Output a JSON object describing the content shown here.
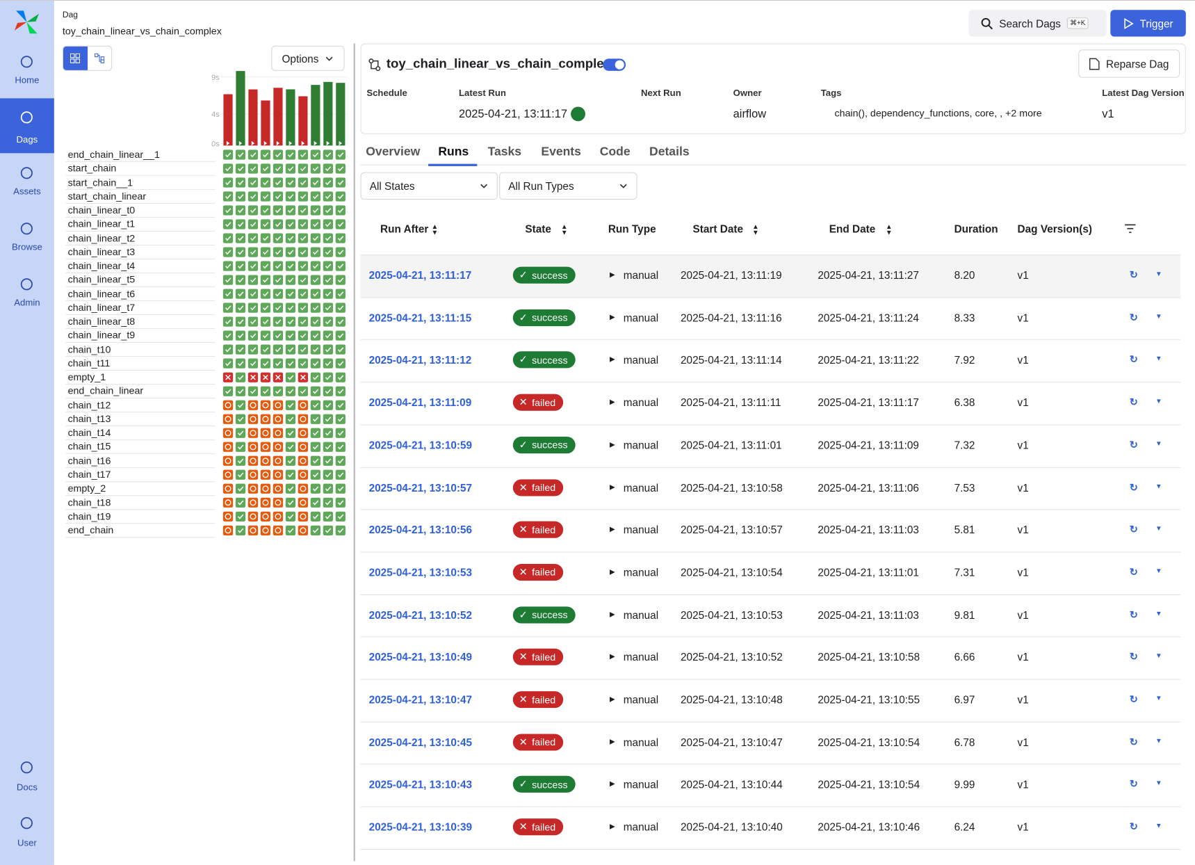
{
  "nav": {
    "items": [
      "Home",
      "Dags",
      "Assets",
      "Browse",
      "Admin"
    ],
    "bottom": [
      "Docs",
      "User"
    ]
  },
  "header": {
    "label": "Dag",
    "dag_id": "toy_chain_linear_vs_chain_complex",
    "search": "Search Dags",
    "shortcut": "⌘+K",
    "trigger": "Trigger",
    "options": "Options"
  },
  "dag": {
    "title": "toy_chain_linear_vs_chain_complex",
    "reparse": "Reparse Dag",
    "meta": [
      {
        "label": "Schedule",
        "value": null
      },
      {
        "label": "Latest Run",
        "value": "2025-04-21, 13:11:17"
      },
      {
        "label": "Next Run",
        "value": null
      },
      {
        "label": "Owner",
        "value": "airflow"
      },
      {
        "label": "Tags",
        "value": "chain(), dependency_functions, core, , +2 more"
      },
      {
        "label": "Latest Dag Version",
        "value": "v1"
      }
    ]
  },
  "tabs": {
    "items": [
      "Overview",
      "Runs",
      "Tasks",
      "Events",
      "Code",
      "Details"
    ],
    "active": "Runs"
  },
  "filters": [
    "All States",
    "All Run Types"
  ],
  "chart_data": {
    "type": "bar",
    "durations": [
      6.66,
      9.81,
      7.31,
      5.81,
      7.53,
      7.32,
      6.38,
      7.92,
      8.33,
      8.2
    ],
    "states": [
      "failed",
      "success",
      "failed",
      "failed",
      "failed",
      "success",
      "failed",
      "success",
      "success",
      "success"
    ],
    "ylim": [
      0,
      9
    ],
    "yticks": [
      {
        "value": 0,
        "label": "0s"
      },
      {
        "value": 4,
        "label": "4s"
      },
      {
        "value": 9,
        "label": "9s"
      }
    ]
  },
  "grid": {
    "tasks": [
      {
        "name": "end_chain_linear__1",
        "states": [
          "success",
          "success",
          "success",
          "success",
          "success",
          "success",
          "success",
          "success",
          "success",
          "success"
        ]
      },
      {
        "name": "start_chain",
        "states": [
          "success",
          "success",
          "success",
          "success",
          "success",
          "success",
          "success",
          "success",
          "success",
          "success"
        ]
      },
      {
        "name": "start_chain__1",
        "states": [
          "success",
          "success",
          "success",
          "success",
          "success",
          "success",
          "success",
          "success",
          "success",
          "success"
        ]
      },
      {
        "name": "start_chain_linear",
        "states": [
          "success",
          "success",
          "success",
          "success",
          "success",
          "success",
          "success",
          "success",
          "success",
          "success"
        ]
      },
      {
        "name": "chain_linear_t0",
        "states": [
          "success",
          "success",
          "success",
          "success",
          "success",
          "success",
          "success",
          "success",
          "success",
          "success"
        ]
      },
      {
        "name": "chain_linear_t1",
        "states": [
          "success",
          "success",
          "success",
          "success",
          "success",
          "success",
          "success",
          "success",
          "success",
          "success"
        ]
      },
      {
        "name": "chain_linear_t2",
        "states": [
          "success",
          "success",
          "success",
          "success",
          "success",
          "success",
          "success",
          "success",
          "success",
          "success"
        ]
      },
      {
        "name": "chain_linear_t3",
        "states": [
          "success",
          "success",
          "success",
          "success",
          "success",
          "success",
          "success",
          "success",
          "success",
          "success"
        ]
      },
      {
        "name": "chain_linear_t4",
        "states": [
          "success",
          "success",
          "success",
          "success",
          "success",
          "success",
          "success",
          "success",
          "success",
          "success"
        ]
      },
      {
        "name": "chain_linear_t5",
        "states": [
          "success",
          "success",
          "success",
          "success",
          "success",
          "success",
          "success",
          "success",
          "success",
          "success"
        ]
      },
      {
        "name": "chain_linear_t6",
        "states": [
          "success",
          "success",
          "success",
          "success",
          "success",
          "success",
          "success",
          "success",
          "success",
          "success"
        ]
      },
      {
        "name": "chain_linear_t7",
        "states": [
          "success",
          "success",
          "success",
          "success",
          "success",
          "success",
          "success",
          "success",
          "success",
          "success"
        ]
      },
      {
        "name": "chain_linear_t8",
        "states": [
          "success",
          "success",
          "success",
          "success",
          "success",
          "success",
          "success",
          "success",
          "success",
          "success"
        ]
      },
      {
        "name": "chain_linear_t9",
        "states": [
          "success",
          "success",
          "success",
          "success",
          "success",
          "success",
          "success",
          "success",
          "success",
          "success"
        ]
      },
      {
        "name": "chain_t10",
        "states": [
          "success",
          "success",
          "success",
          "success",
          "success",
          "success",
          "success",
          "success",
          "success",
          "success"
        ]
      },
      {
        "name": "chain_t11",
        "states": [
          "success",
          "success",
          "success",
          "success",
          "success",
          "success",
          "success",
          "success",
          "success",
          "success"
        ]
      },
      {
        "name": "empty_1",
        "states": [
          "failed",
          "success",
          "failed",
          "failed",
          "failed",
          "success",
          "failed",
          "success",
          "success",
          "success"
        ]
      },
      {
        "name": "end_chain_linear",
        "states": [
          "success",
          "success",
          "success",
          "success",
          "success",
          "success",
          "success",
          "success",
          "success",
          "success"
        ]
      },
      {
        "name": "chain_t12",
        "states": [
          "upstream_failed",
          "success",
          "upstream_failed",
          "upstream_failed",
          "upstream_failed",
          "success",
          "upstream_failed",
          "success",
          "success",
          "success"
        ]
      },
      {
        "name": "chain_t13",
        "states": [
          "upstream_failed",
          "success",
          "upstream_failed",
          "upstream_failed",
          "upstream_failed",
          "success",
          "upstream_failed",
          "success",
          "success",
          "success"
        ]
      },
      {
        "name": "chain_t14",
        "states": [
          "upstream_failed",
          "success",
          "upstream_failed",
          "upstream_failed",
          "upstream_failed",
          "success",
          "upstream_failed",
          "success",
          "success",
          "success"
        ]
      },
      {
        "name": "chain_t15",
        "states": [
          "upstream_failed",
          "success",
          "upstream_failed",
          "upstream_failed",
          "upstream_failed",
          "success",
          "upstream_failed",
          "success",
          "success",
          "success"
        ]
      },
      {
        "name": "chain_t16",
        "states": [
          "upstream_failed",
          "success",
          "upstream_failed",
          "upstream_failed",
          "upstream_failed",
          "success",
          "upstream_failed",
          "success",
          "success",
          "success"
        ]
      },
      {
        "name": "chain_t17",
        "states": [
          "upstream_failed",
          "success",
          "upstream_failed",
          "upstream_failed",
          "upstream_failed",
          "success",
          "upstream_failed",
          "success",
          "success",
          "success"
        ]
      },
      {
        "name": "empty_2",
        "states": [
          "upstream_failed",
          "success",
          "upstream_failed",
          "upstream_failed",
          "upstream_failed",
          "success",
          "upstream_failed",
          "success",
          "success",
          "success"
        ]
      },
      {
        "name": "chain_t18",
        "states": [
          "upstream_failed",
          "success",
          "upstream_failed",
          "upstream_failed",
          "upstream_failed",
          "success",
          "upstream_failed",
          "success",
          "success",
          "success"
        ]
      },
      {
        "name": "chain_t19",
        "states": [
          "upstream_failed",
          "success",
          "upstream_failed",
          "upstream_failed",
          "upstream_failed",
          "success",
          "upstream_failed",
          "success",
          "success",
          "success"
        ]
      },
      {
        "name": "end_chain",
        "states": [
          "upstream_failed",
          "success",
          "upstream_failed",
          "upstream_failed",
          "upstream_failed",
          "success",
          "upstream_failed",
          "success",
          "success",
          "success"
        ]
      }
    ]
  },
  "table": {
    "columns": [
      "Run After",
      "State",
      "Run Type",
      "Start Date",
      "End Date",
      "Duration",
      "Dag Version(s)"
    ],
    "rows": [
      [
        "2025-04-21, 13:11:17",
        "success",
        "manual",
        "2025-04-21, 13:11:19",
        "2025-04-21, 13:11:27",
        "8.20",
        "v1"
      ],
      [
        "2025-04-21, 13:11:15",
        "success",
        "manual",
        "2025-04-21, 13:11:16",
        "2025-04-21, 13:11:24",
        "8.33",
        "v1"
      ],
      [
        "2025-04-21, 13:11:12",
        "success",
        "manual",
        "2025-04-21, 13:11:14",
        "2025-04-21, 13:11:22",
        "7.92",
        "v1"
      ],
      [
        "2025-04-21, 13:11:09",
        "failed",
        "manual",
        "2025-04-21, 13:11:11",
        "2025-04-21, 13:11:17",
        "6.38",
        "v1"
      ],
      [
        "2025-04-21, 13:10:59",
        "success",
        "manual",
        "2025-04-21, 13:11:01",
        "2025-04-21, 13:11:09",
        "7.32",
        "v1"
      ],
      [
        "2025-04-21, 13:10:57",
        "failed",
        "manual",
        "2025-04-21, 13:10:58",
        "2025-04-21, 13:11:06",
        "7.53",
        "v1"
      ],
      [
        "2025-04-21, 13:10:56",
        "failed",
        "manual",
        "2025-04-21, 13:10:57",
        "2025-04-21, 13:11:03",
        "5.81",
        "v1"
      ],
      [
        "2025-04-21, 13:10:53",
        "failed",
        "manual",
        "2025-04-21, 13:10:54",
        "2025-04-21, 13:11:01",
        "7.31",
        "v1"
      ],
      [
        "2025-04-21, 13:10:52",
        "success",
        "manual",
        "2025-04-21, 13:10:53",
        "2025-04-21, 13:11:03",
        "9.81",
        "v1"
      ],
      [
        "2025-04-21, 13:10:49",
        "failed",
        "manual",
        "2025-04-21, 13:10:52",
        "2025-04-21, 13:10:58",
        "6.66",
        "v1"
      ],
      [
        "2025-04-21, 13:10:47",
        "failed",
        "manual",
        "2025-04-21, 13:10:48",
        "2025-04-21, 13:10:55",
        "6.97",
        "v1"
      ],
      [
        "2025-04-21, 13:10:45",
        "failed",
        "manual",
        "2025-04-21, 13:10:47",
        "2025-04-21, 13:10:54",
        "6.78",
        "v1"
      ],
      [
        "2025-04-21, 13:10:43",
        "success",
        "manual",
        "2025-04-21, 13:10:44",
        "2025-04-21, 13:10:54",
        "9.99",
        "v1"
      ],
      [
        "2025-04-21, 13:10:39",
        "failed",
        "manual",
        "2025-04-21, 13:10:40",
        "2025-04-21, 13:10:46",
        "6.24",
        "v1"
      ]
    ]
  }
}
